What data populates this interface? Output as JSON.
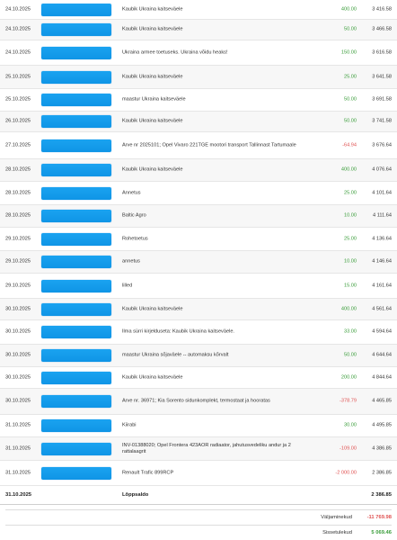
{
  "transactions": [
    {
      "date": "24.10.2025",
      "description": "Kaubik Ukraina kaitseväele",
      "amount": "400.00",
      "type": "pos",
      "balance": "3 416.58"
    },
    {
      "date": "24.10.2025",
      "description": "Kaubik Ukraina kaitseväele",
      "amount": "50.00",
      "type": "pos",
      "balance": "3 466.58"
    },
    {
      "date": "24.10.2025",
      "description": "Ukraina armee toetuseks. Ukraina võidu heaks!",
      "amount": "150.00",
      "type": "pos",
      "balance": "3 616.58"
    },
    {
      "date": "25.10.2025",
      "description": "Kaubik Ukraina kaitseväele",
      "amount": "25.00",
      "type": "pos",
      "balance": "3 641.58"
    },
    {
      "date": "25.10.2025",
      "description": "maastur Ukraina kaitseväele",
      "amount": "50.00",
      "type": "pos",
      "balance": "3 691.58"
    },
    {
      "date": "26.10.2025",
      "description": "Kaubik Ukraina kaitseväele",
      "amount": "50.00",
      "type": "pos",
      "balance": "3 741.58"
    },
    {
      "date": "27.10.2025",
      "description": "Arve nr 2025101; Opel Vivaro 221TGE mootori transport Tallinnast Tartumaale",
      "amount": "-64.94",
      "type": "neg",
      "balance": "3 676.64"
    },
    {
      "date": "28.10.2025",
      "description": "Kaubik Ukraina kaitseväele",
      "amount": "400.00",
      "type": "pos",
      "balance": "4 076.64"
    },
    {
      "date": "28.10.2025",
      "description": "Annetus",
      "amount": "25.00",
      "type": "pos",
      "balance": "4 101.64"
    },
    {
      "date": "28.10.2025",
      "description": "Baltic Agro",
      "amount": "10.00",
      "type": "pos",
      "balance": "4 111.64"
    },
    {
      "date": "29.10.2025",
      "description": "Rohetoetus",
      "amount": "25.00",
      "type": "pos",
      "balance": "4 136.64"
    },
    {
      "date": "29.10.2025",
      "description": "annetus",
      "amount": "10.00",
      "type": "pos",
      "balance": "4 146.64"
    },
    {
      "date": "29.10.2025",
      "description": "lilled",
      "amount": "15.00",
      "type": "pos",
      "balance": "4 161.64"
    },
    {
      "date": "30.10.2025",
      "description": "Kaubik Ukraina kaitseväele",
      "amount": "400.00",
      "type": "pos",
      "balance": "4 561.64"
    },
    {
      "date": "30.10.2025",
      "description": "Ilma sürri kirjelduseta: Kaubik Ukraina kaitseväele.",
      "amount": "33.00",
      "type": "pos",
      "balance": "4 594.64"
    },
    {
      "date": "30.10.2025",
      "description": "maastur Ukraina sõjaväele -- automaksu kõrvalt",
      "amount": "50.00",
      "type": "pos",
      "balance": "4 644.64"
    },
    {
      "date": "30.10.2025",
      "description": "Kaubik Ukraina kaitseväele",
      "amount": "200.00",
      "type": "pos",
      "balance": "4 844.64"
    },
    {
      "date": "30.10.2025",
      "description": "Arve nr. 36971; Kia Sorento sidunkomplekt, termostaat ja hooratas",
      "amount": "-378.79",
      "type": "neg",
      "balance": "4 465.85"
    },
    {
      "date": "31.10.2025",
      "description": "Kiirabi",
      "amount": "30.00",
      "type": "pos",
      "balance": "4 495.85"
    },
    {
      "date": "31.10.2025",
      "description": "INV-01388020; Opel Frontera 423AOR radiaator, jahutusvedeliku andur ja 2 rattalaagrit",
      "amount": "-109.00",
      "type": "neg",
      "balance": "4 386.85"
    },
    {
      "date": "31.10.2025",
      "description": "Renault Trafic 899RCP",
      "amount": "-2 000.00",
      "type": "neg",
      "balance": "2 386.85"
    }
  ],
  "closing": {
    "date": "31.10.2025",
    "label": "Lõppsaldo",
    "balance": "2 386.85"
  },
  "totals": {
    "outgoing_label": "Väljaminekud",
    "outgoing_value": "-11 769.98",
    "incoming_label": "Sissetulekud",
    "incoming_value": "5 069.46"
  },
  "colors": {
    "party_mask": "#1aa3f0",
    "positive": "#3a9d3a",
    "negative": "#e05353"
  }
}
